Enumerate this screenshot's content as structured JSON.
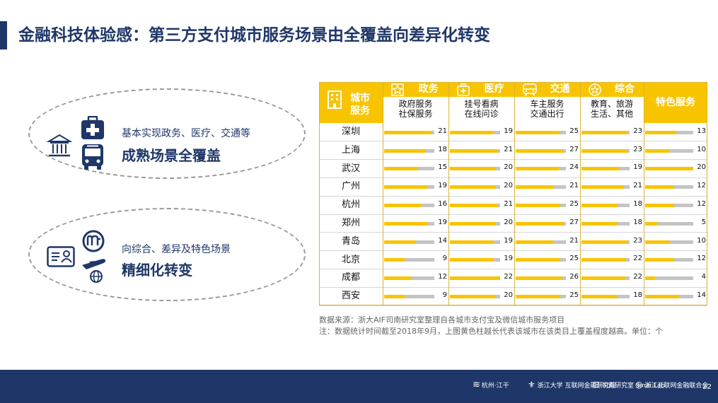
{
  "title": "金融科技体验感：第三方支付城市服务场景由全覆盖向差异化转变",
  "ovals": [
    {
      "subtitle": "基本实现政务、医疗、交通等",
      "headline": "成熟场景全覆盖"
    },
    {
      "subtitle": "向综合、差异及特色场景",
      "headline": "精细化转变"
    }
  ],
  "table": {
    "corner_label_1": "城市",
    "corner_label_2": "服务",
    "columns": [
      {
        "title": "政务",
        "icon": "star-badge-icon",
        "sub1": "政府服务",
        "sub2": "社保服务"
      },
      {
        "title": "医疗",
        "icon": "medical-kit-icon",
        "sub1": "挂号看病",
        "sub2": "在线问诊"
      },
      {
        "title": "交通",
        "icon": "bus-icon",
        "sub1": "车主服务",
        "sub2": "交通出行"
      },
      {
        "title": "综合",
        "icon": "star-circle-icon",
        "sub1": "教育、旅游",
        "sub2": "生活、其他"
      },
      {
        "title": "特色服务",
        "icon": "",
        "sub1": "",
        "sub2": ""
      }
    ],
    "rows": [
      {
        "city": "深圳",
        "values": [
          21,
          19,
          25,
          23,
          13
        ]
      },
      {
        "city": "上海",
        "values": [
          18,
          21,
          27,
          23,
          10
        ]
      },
      {
        "city": "武汉",
        "values": [
          15,
          20,
          24,
          19,
          20
        ]
      },
      {
        "city": "广州",
        "values": [
          19,
          20,
          21,
          21,
          12
        ]
      },
      {
        "city": "杭州",
        "values": [
          16,
          21,
          25,
          18,
          12
        ]
      },
      {
        "city": "郑州",
        "values": [
          19,
          20,
          27,
          18,
          5
        ]
      },
      {
        "city": "青岛",
        "values": [
          14,
          19,
          21,
          23,
          10
        ]
      },
      {
        "city": "北京",
        "values": [
          9,
          19,
          25,
          22,
          12
        ]
      },
      {
        "city": "成都",
        "values": [
          12,
          22,
          26,
          22,
          4
        ]
      },
      {
        "city": "西安",
        "values": [
          9,
          20,
          25,
          18,
          14
        ]
      }
    ],
    "max_values": [
      22,
      22,
      28,
      24,
      20
    ],
    "bar_color": "#f8c400",
    "track_color": "#c4c4c4"
  },
  "notes": {
    "source": "数据来源：浙大AIF司南研究室整理自各城市支付宝及微信城市服务项目",
    "note": "注：数据统计时间截至2018年9月，上图黄色柱越长代表该城市在该类目上覆盖程度越高。单位：个"
  },
  "footer": {
    "logos": [
      "杭州·江干",
      "浙江大学 互联网金融研究院",
      "司南研究室 Sinai Lab",
      "浙江互联网金融联合会"
    ],
    "page_number": "22"
  },
  "colors": {
    "navy": "#1f3768",
    "yellow": "#f8c400"
  }
}
